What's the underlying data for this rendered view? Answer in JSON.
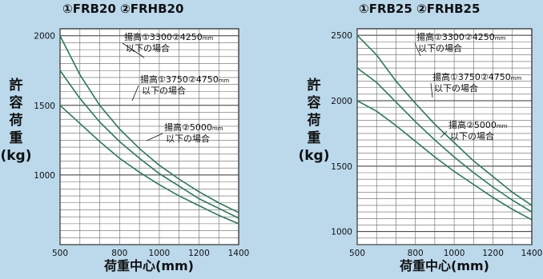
{
  "chart_data": [
    {
      "type": "line",
      "title": "①FRB20 ②FRHB20",
      "xlabel": "荷重中心(mm)",
      "ylabel": "許容荷重(kg)",
      "xlim": [
        500,
        1400
      ],
      "ylim": [
        500,
        2050
      ],
      "x_ticks": [
        "500",
        "800",
        "1000",
        "1200",
        "1400"
      ],
      "y_ticks": [
        "1000",
        "1500",
        "2000"
      ],
      "x_tick_values": [
        500,
        800,
        1000,
        1200,
        1400
      ],
      "y_tick_values": [
        1000,
        1500,
        2000
      ],
      "grid": true,
      "series": [
        {
          "annotation": [
            "揚高①3300②4250",
            "mm",
            "以下の場合"
          ],
          "x": [
            500,
            600,
            700,
            800,
            900,
            1000,
            1100,
            1200,
            1300,
            1400
          ],
          "y": [
            2000,
            1720,
            1500,
            1330,
            1190,
            1070,
            970,
            880,
            800,
            730
          ]
        },
        {
          "annotation": [
            "揚高①3750②4750",
            "mm",
            "以下の場合"
          ],
          "x": [
            500,
            600,
            700,
            800,
            900,
            1000,
            1100,
            1200,
            1300,
            1400
          ],
          "y": [
            1750,
            1550,
            1380,
            1240,
            1120,
            1010,
            920,
            830,
            760,
            690
          ]
        },
        {
          "annotation": [
            "揚高②5000",
            "mm",
            "以下の場合"
          ],
          "x": [
            500,
            600,
            700,
            800,
            900,
            1000,
            1100,
            1200,
            1300,
            1400
          ],
          "y": [
            1500,
            1370,
            1240,
            1120,
            1020,
            930,
            850,
            780,
            710,
            650
          ]
        }
      ]
    },
    {
      "type": "line",
      "title": "①FRB25 ②FRHB25",
      "xlabel": "荷重中心(mm)",
      "ylabel": "許容荷重(kg)",
      "xlim": [
        500,
        1400
      ],
      "ylim": [
        900,
        2550
      ],
      "x_ticks": [
        "500",
        "800",
        "1000",
        "1200",
        "1400"
      ],
      "y_ticks": [
        "1000",
        "1500",
        "2000",
        "2500"
      ],
      "x_tick_values": [
        500,
        800,
        1000,
        1200,
        1400
      ],
      "y_tick_values": [
        1000,
        1500,
        2000,
        2500
      ],
      "grid": true,
      "series": [
        {
          "annotation": [
            "揚高①3300②4250",
            "mm",
            "以下の場合"
          ],
          "x": [
            500,
            600,
            700,
            800,
            900,
            1000,
            1100,
            1200,
            1300,
            1400
          ],
          "y": [
            2500,
            2350,
            2150,
            1980,
            1820,
            1680,
            1540,
            1420,
            1300,
            1200
          ]
        },
        {
          "annotation": [
            "揚高①3750②4750",
            "mm",
            "以下の場合"
          ],
          "x": [
            500,
            600,
            700,
            800,
            900,
            1000,
            1100,
            1200,
            1300,
            1400
          ],
          "y": [
            2250,
            2140,
            1990,
            1840,
            1700,
            1570,
            1450,
            1340,
            1240,
            1150
          ]
        },
        {
          "annotation": [
            "揚高②5000",
            "mm",
            "以下の場合"
          ],
          "x": [
            500,
            600,
            700,
            800,
            900,
            1000,
            1100,
            1200,
            1300,
            1400
          ],
          "y": [
            2000,
            1920,
            1810,
            1690,
            1570,
            1460,
            1360,
            1260,
            1170,
            1090
          ]
        }
      ]
    }
  ]
}
